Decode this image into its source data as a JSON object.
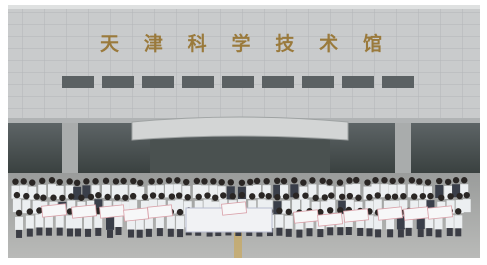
{
  "building": {
    "sign": "天津科学技术馆"
  }
}
